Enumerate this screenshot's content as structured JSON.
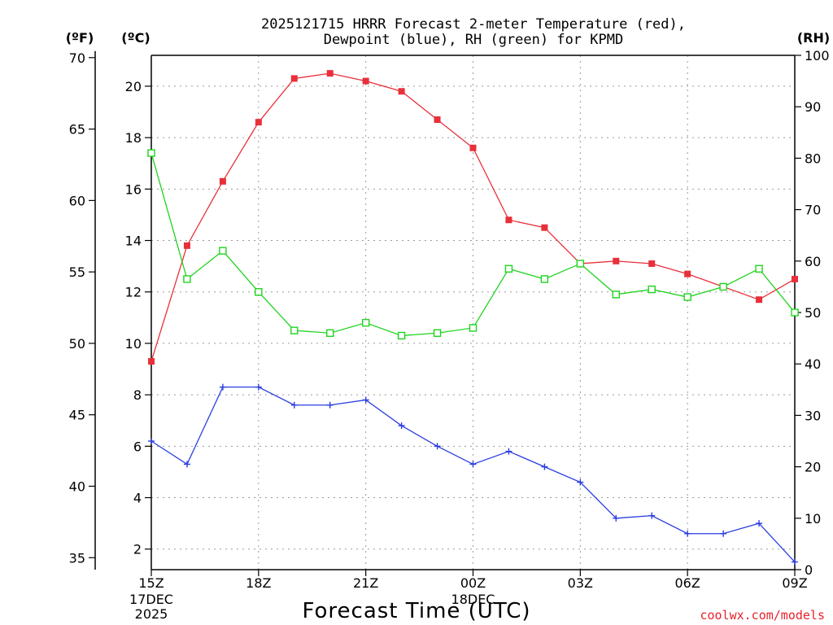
{
  "chart_data": {
    "type": "line",
    "title_lines": [
      "2025121715 HRRR Forecast 2-meter Temperature (red),",
      "Dewpoint (blue), RH (green) for KPMD"
    ],
    "xlabel": "Forecast Time (UTC)",
    "credit": "coolwx.com/models",
    "units": {
      "f": "(ºF)",
      "c": "(ºC)",
      "rh": "(RH)"
    },
    "x": [
      "15Z",
      "16Z",
      "17Z",
      "18Z",
      "19Z",
      "20Z",
      "21Z",
      "22Z",
      "23Z",
      "00Z",
      "01Z",
      "02Z",
      "03Z",
      "04Z",
      "05Z",
      "06Z",
      "07Z",
      "08Z",
      "09Z"
    ],
    "xticks": [
      {
        "label": "15Z",
        "sub": [
          "17DEC",
          "2025"
        ]
      },
      {
        "label": "18Z",
        "sub": []
      },
      {
        "label": "21Z",
        "sub": []
      },
      {
        "label": "00Z",
        "sub": [
          "18DEC"
        ]
      },
      {
        "label": "03Z",
        "sub": []
      },
      {
        "label": "06Z",
        "sub": []
      },
      {
        "label": "09Z",
        "sub": []
      }
    ],
    "ylim_c": [
      1.2,
      21.2
    ],
    "yticks_c": [
      2,
      4,
      6,
      8,
      10,
      12,
      14,
      16,
      18,
      20
    ],
    "yticks_f": [
      35,
      40,
      45,
      50,
      55,
      60,
      65,
      70
    ],
    "ylim_rh": [
      0,
      100
    ],
    "yticks_rh": [
      0,
      10,
      20,
      30,
      40,
      50,
      60,
      70,
      80,
      90,
      100
    ],
    "grid": true,
    "series": [
      {
        "color": "#e8303a",
        "axis": "c",
        "marker": "filled-square",
        "values": [
          9.3,
          13.8,
          16.3,
          18.6,
          20.3,
          20.5,
          20.2,
          19.8,
          18.7,
          17.6,
          14.8,
          14.5,
          13.1,
          13.2,
          13.1,
          12.7,
          12.2,
          11.7,
          12.5
        ]
      },
      {
        "color": "#2a3ee0",
        "axis": "c",
        "marker": "plus",
        "values": [
          6.2,
          5.3,
          8.3,
          8.3,
          7.6,
          7.6,
          7.8,
          6.8,
          6.0,
          5.3,
          5.8,
          5.2,
          4.6,
          3.2,
          3.3,
          2.6,
          2.6,
          3.0,
          1.5
        ]
      },
      {
        "color": "#1fd41f",
        "axis": "rh",
        "marker": "open-square",
        "values": [
          81,
          56.5,
          62,
          54,
          46.5,
          46,
          48,
          45.5,
          46,
          47,
          58.5,
          56.5,
          59.5,
          53.5,
          54.5,
          53,
          55,
          58.5,
          50
        ]
      }
    ]
  }
}
